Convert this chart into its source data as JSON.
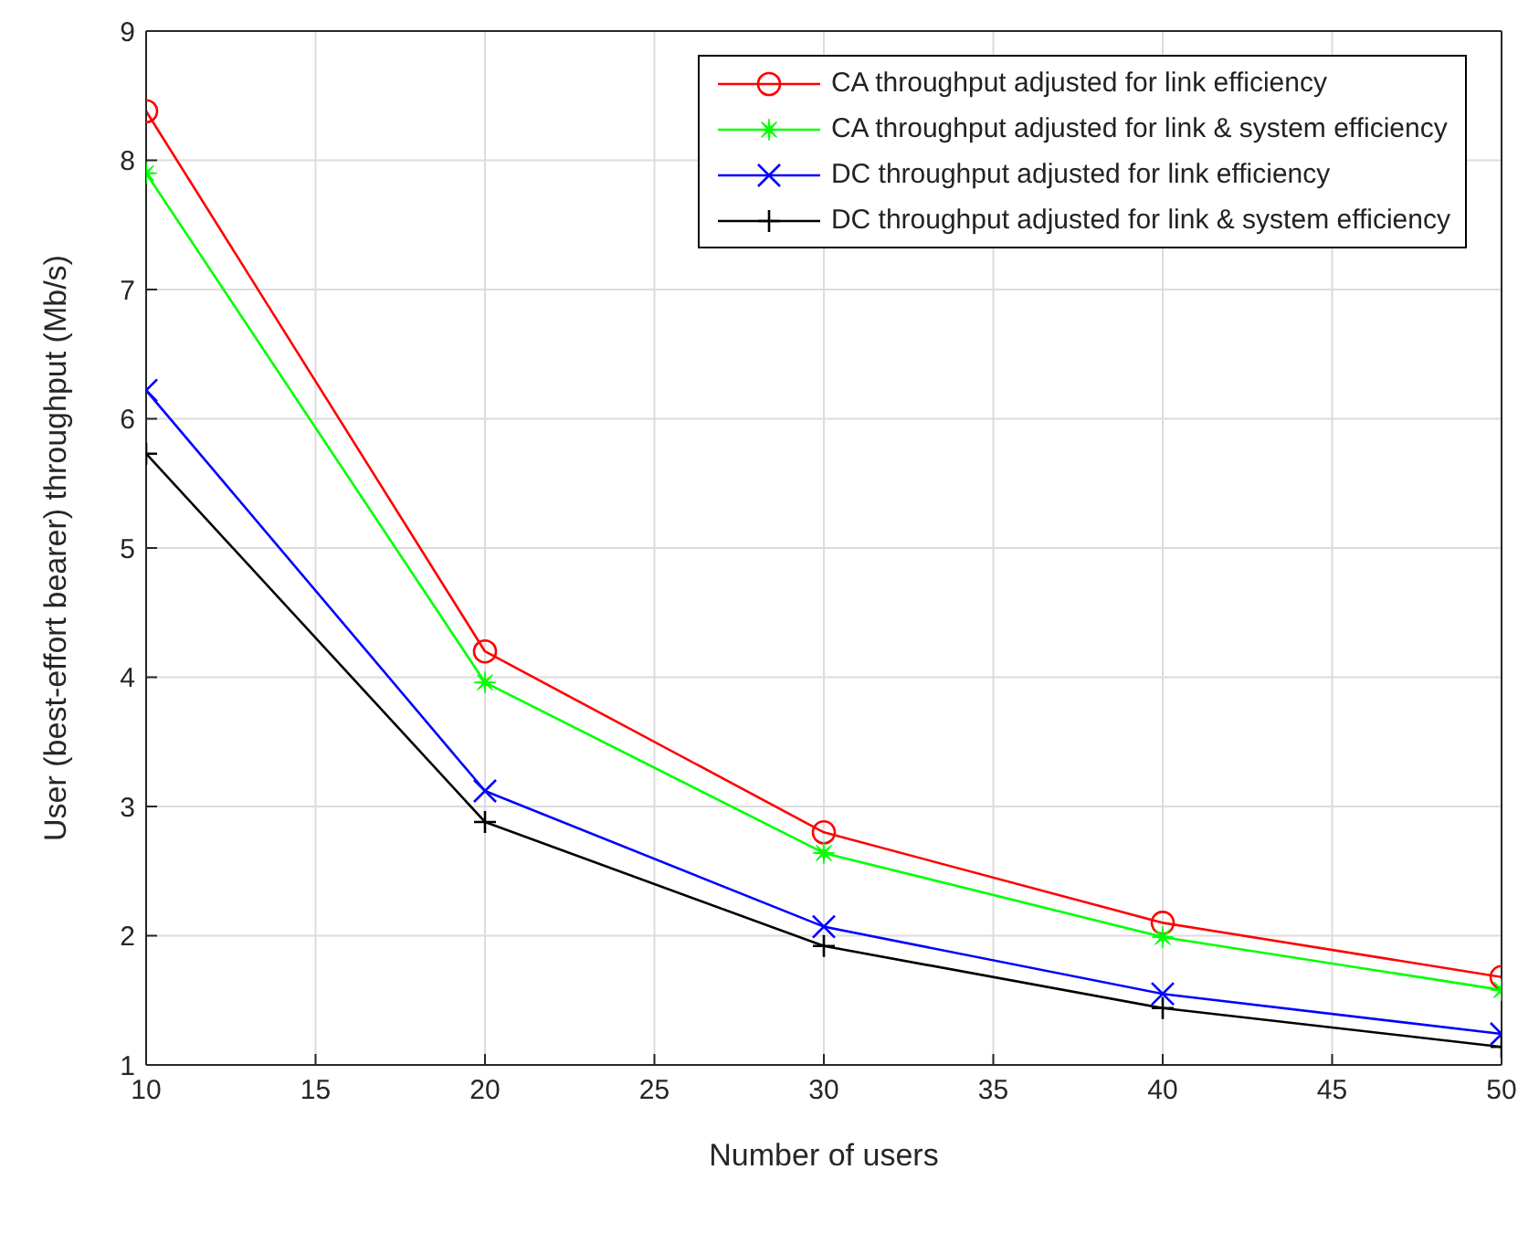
{
  "chart_data": {
    "type": "line",
    "xlabel": "Number of users",
    "ylabel": "User (best-effort bearer) throughput (Mb/s)",
    "x": [
      10,
      20,
      30,
      40,
      50
    ],
    "series": [
      {
        "name": "CA throughput adjusted for link efficiency",
        "color": "#ff0000",
        "marker": "circle",
        "values": [
          8.38,
          4.2,
          2.8,
          2.1,
          1.68
        ]
      },
      {
        "name": "CA throughput adjusted for link & system efficiency",
        "color": "#00ff00",
        "marker": "star",
        "values": [
          7.9,
          3.96,
          2.64,
          1.99,
          1.58
        ]
      },
      {
        "name": "DC throughput adjusted for link efficiency",
        "color": "#0000ff",
        "marker": "x",
        "values": [
          6.22,
          3.12,
          2.07,
          1.55,
          1.24
        ]
      },
      {
        "name": "DC throughput adjusted for link & system efficiency",
        "color": "#000000",
        "marker": "cross",
        "values": [
          5.73,
          2.88,
          1.92,
          1.44,
          1.14
        ]
      }
    ],
    "xlim": [
      10,
      50
    ],
    "xticks": [
      10,
      15,
      20,
      25,
      30,
      35,
      40,
      45,
      50
    ],
    "ylim": [
      1,
      9
    ],
    "yticks": [
      1,
      2,
      3,
      4,
      5,
      6,
      7,
      8,
      9
    ],
    "grid": true,
    "legend": "top right",
    "line_style": "solid"
  }
}
